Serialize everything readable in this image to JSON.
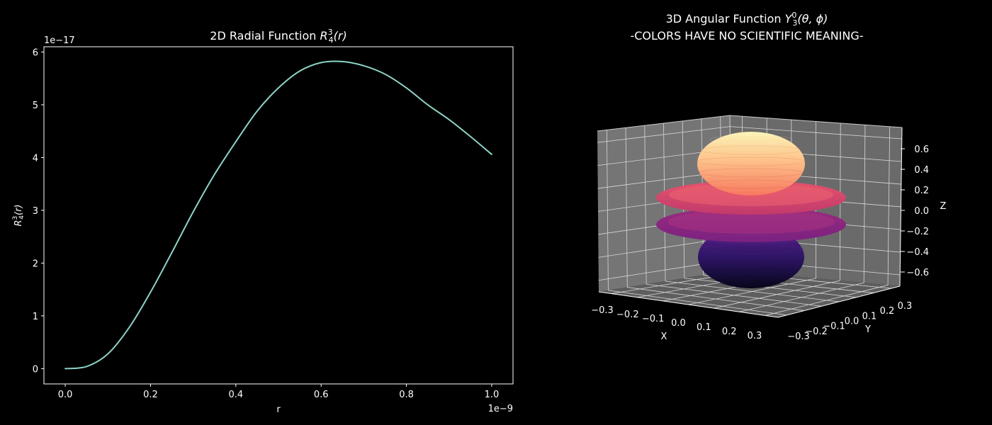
{
  "chart_data": [
    {
      "type": "line",
      "title": "2D Radial Function R_4^3(r)",
      "title_main": "2D Radial Function ",
      "title_sym": "R",
      "title_sup": "3",
      "title_sub": "4",
      "title_arg": "(r)",
      "xlabel": "r",
      "ylabel": "R_4^3(r)",
      "ylabel_sym": "R",
      "ylabel_sup": "3",
      "ylabel_sub": "4",
      "ylabel_arg": "(r)",
      "x_offset_text": "1e−9",
      "y_offset_text": "1e−17",
      "x_ticks": [
        "0.0",
        "0.2",
        "0.4",
        "0.6",
        "0.8",
        "1.0"
      ],
      "y_ticks": [
        "0",
        "1",
        "2",
        "3",
        "4",
        "5",
        "6"
      ],
      "xlim": [
        -0.05,
        1.05
      ],
      "ylim": [
        -0.29,
        6.1
      ],
      "line_color": "#8dd3c7",
      "series": [
        {
          "x": [
            0.0,
            0.05,
            0.1,
            0.15,
            0.2,
            0.25,
            0.3,
            0.35,
            0.4,
            0.45,
            0.5,
            0.55,
            0.6,
            0.65,
            0.7,
            0.75,
            0.8,
            0.85,
            0.9,
            0.95,
            1.0
          ],
          "y": [
            0.0,
            0.04,
            0.28,
            0.78,
            1.45,
            2.2,
            2.97,
            3.68,
            4.3,
            4.88,
            5.32,
            5.64,
            5.8,
            5.82,
            5.74,
            5.58,
            5.32,
            5.0,
            4.72,
            4.4,
            4.06
          ]
        }
      ]
    },
    {
      "type": "surface3d",
      "title_line1_main": "3D Angular Function ",
      "title_line1_sym": "Y",
      "title_line1_sup": "0",
      "title_line1_sub": "3",
      "title_line1_arg": "(θ, ϕ)",
      "title_line2": "-COLORS HAVE NO SCIENTIFIC MEANING-",
      "xlabel": "X",
      "ylabel": "Y",
      "zlabel": "Z",
      "x_ticks": [
        "−0.3",
        "−0.2",
        "−0.1",
        "0.0",
        "0.1",
        "0.2",
        "0.3"
      ],
      "y_ticks": [
        "−0.3",
        "−0.2",
        "−0.1",
        "0.0",
        "0.1",
        "0.2",
        "0.3"
      ],
      "z_ticks": [
        "0.6",
        "0.4",
        "0.2",
        "0.0",
        "−0.2",
        "−0.4",
        "−0.6"
      ],
      "pane_color": "#757575",
      "colormap": "magma"
    }
  ]
}
